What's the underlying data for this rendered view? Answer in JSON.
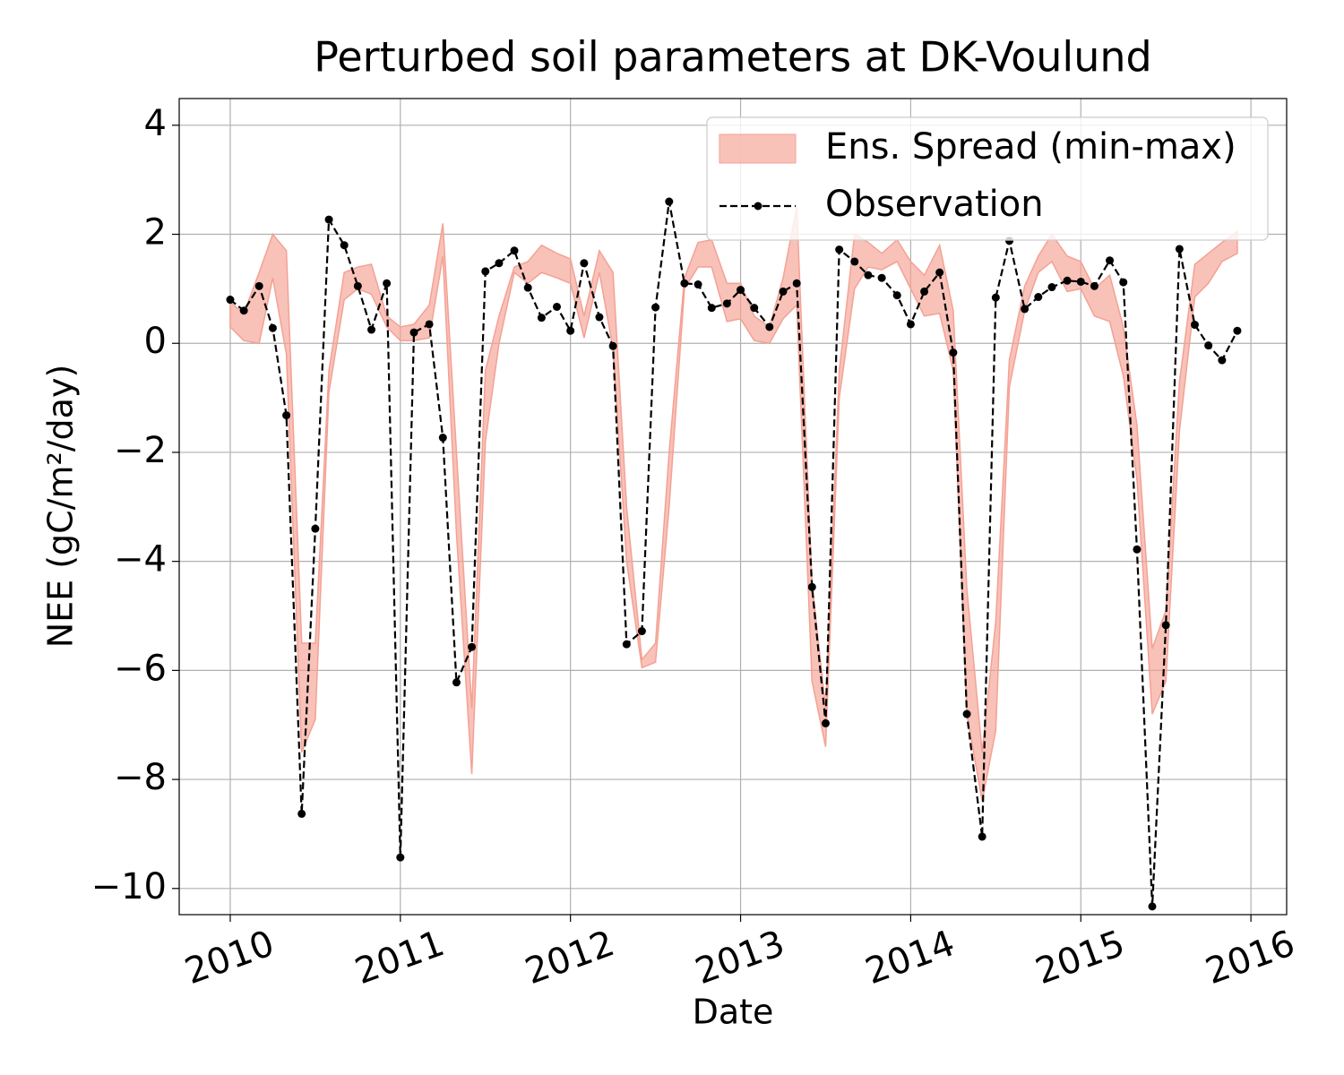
{
  "chart_data": {
    "type": "line",
    "title": "Perturbed soil parameters at DK-Voulund",
    "x_label": "Date",
    "y_label": "NEE  (gC/m²/day)",
    "x": [
      2010.0,
      2010.08,
      2010.17,
      2010.25,
      2010.33,
      2010.42,
      2010.5,
      2010.58,
      2010.67,
      2010.75,
      2010.83,
      2010.92,
      2011.0,
      2011.08,
      2011.17,
      2011.25,
      2011.33,
      2011.42,
      2011.5,
      2011.58,
      2011.67,
      2011.75,
      2011.83,
      2011.92,
      2012.0,
      2012.08,
      2012.17,
      2012.25,
      2012.33,
      2012.42,
      2012.5,
      2012.58,
      2012.67,
      2012.75,
      2012.83,
      2012.92,
      2013.0,
      2013.08,
      2013.17,
      2013.25,
      2013.33,
      2013.42,
      2013.5,
      2013.58,
      2013.67,
      2013.75,
      2013.83,
      2013.92,
      2014.0,
      2014.08,
      2014.17,
      2014.25,
      2014.33,
      2014.42,
      2014.5,
      2014.58,
      2014.67,
      2014.75,
      2014.83,
      2014.92,
      2015.0,
      2015.08,
      2015.17,
      2015.25,
      2015.33,
      2015.42,
      2015.5,
      2015.58,
      2015.67,
      2015.75,
      2015.83,
      2015.92
    ],
    "series": [
      {
        "name": "Ens. Spread (min-max)",
        "type": "band",
        "color": "#f4a194",
        "max": [
          0.75,
          0.55,
          1.3,
          2.0,
          1.7,
          -5.5,
          -5.5,
          -0.5,
          1.3,
          1.4,
          1.45,
          0.5,
          0.3,
          0.35,
          0.7,
          2.2,
          -2.0,
          -6.7,
          -0.5,
          0.5,
          1.4,
          1.5,
          1.8,
          1.65,
          1.55,
          0.5,
          1.7,
          1.3,
          -3.0,
          -5.8,
          -5.5,
          -2.0,
          1.2,
          1.85,
          1.9,
          1.1,
          1.1,
          0.5,
          0.3,
          1.2,
          2.5,
          -4.4,
          -6.7,
          -0.5,
          2.0,
          1.85,
          1.65,
          1.9,
          1.5,
          1.25,
          1.8,
          0.6,
          -4.5,
          -7.5,
          -5.1,
          -0.3,
          1.05,
          1.6,
          2.0,
          1.6,
          1.5,
          1.0,
          1.25,
          0.3,
          -1.5,
          -5.6,
          -4.9,
          -0.7,
          1.45,
          1.65,
          1.85,
          2.05
        ],
        "min": [
          0.3,
          0.05,
          0.0,
          1.2,
          -0.2,
          -7.5,
          -6.9,
          -0.9,
          0.8,
          1.0,
          0.9,
          0.3,
          0.05,
          0.05,
          0.1,
          1.6,
          -3.5,
          -7.9,
          -1.8,
          0.0,
          1.3,
          1.1,
          1.3,
          1.2,
          1.1,
          0.1,
          1.3,
          -0.1,
          -4.0,
          -5.95,
          -5.85,
          -3.0,
          1.0,
          1.4,
          1.4,
          0.4,
          0.45,
          0.05,
          0.0,
          0.45,
          0.7,
          -6.2,
          -7.4,
          -1.0,
          1.0,
          1.4,
          1.35,
          1.5,
          1.0,
          0.5,
          0.55,
          -0.5,
          -6.8,
          -8.4,
          -7.1,
          -0.8,
          0.6,
          1.3,
          1.5,
          0.95,
          1.0,
          0.5,
          0.4,
          -0.6,
          -2.5,
          -6.8,
          -6.2,
          -1.6,
          0.85,
          1.1,
          1.5,
          1.65
        ]
      },
      {
        "name": "Observation",
        "type": "line",
        "color": "#000000",
        "linestyle": "dashed",
        "marker": "circle",
        "values": [
          0.8,
          0.6,
          1.05,
          0.28,
          -1.32,
          -8.63,
          -3.4,
          2.27,
          1.8,
          1.05,
          0.25,
          1.1,
          -9.43,
          0.2,
          0.35,
          -1.73,
          -6.22,
          -5.57,
          1.32,
          1.47,
          1.7,
          1.02,
          0.47,
          0.67,
          0.23,
          1.47,
          0.48,
          -0.05,
          -5.52,
          -5.28,
          0.66,
          2.6,
          1.1,
          1.08,
          0.65,
          0.73,
          0.98,
          0.65,
          0.3,
          0.95,
          1.1,
          -4.47,
          -6.97,
          1.72,
          1.5,
          1.25,
          1.2,
          0.88,
          0.35,
          0.95,
          1.3,
          -0.17,
          -6.8,
          -9.05,
          0.84,
          1.88,
          0.63,
          0.85,
          1.03,
          1.15,
          1.13,
          1.05,
          1.52,
          1.12,
          -3.78,
          -10.33,
          -5.17,
          1.73,
          0.34,
          -0.04,
          -0.31,
          0.23
        ]
      }
    ],
    "xlim": [
      2009.7,
      2016.21
    ],
    "ylim": [
      -10.48,
      4.49
    ],
    "xticks": [
      2010,
      2011,
      2012,
      2013,
      2014,
      2015,
      2016
    ],
    "yticks": [
      {
        "value": -10,
        "label": "−10"
      },
      {
        "value": -8,
        "label": "−8"
      },
      {
        "value": -6,
        "label": "−6"
      },
      {
        "value": -4,
        "label": "−4"
      },
      {
        "value": -2,
        "label": "−2"
      },
      0,
      2,
      4
    ],
    "grid": true,
    "legend": "upper right"
  }
}
